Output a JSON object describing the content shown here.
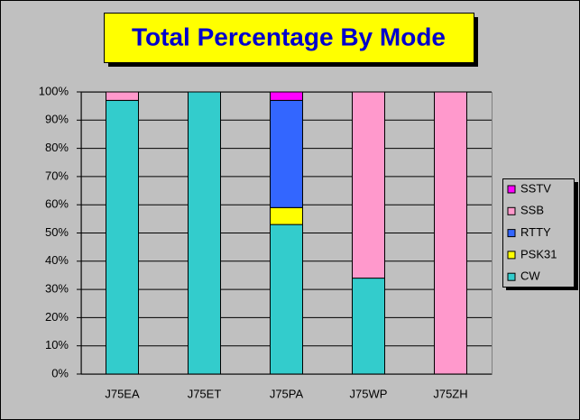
{
  "chart_data": {
    "type": "stacked_bar_percent",
    "title": "Total Percentage By Mode",
    "categories": [
      "J75EA",
      "J75ET",
      "J75PA",
      "J75WP",
      "J75ZH"
    ],
    "series": [
      {
        "name": "CW",
        "color": "#33cccc",
        "values": [
          97,
          100,
          53,
          34,
          0
        ]
      },
      {
        "name": "PSK31",
        "color": "#ffff00",
        "values": [
          0,
          0,
          6,
          0,
          0
        ]
      },
      {
        "name": "RTTY",
        "color": "#3366ff",
        "values": [
          0,
          0,
          38,
          0,
          0
        ]
      },
      {
        "name": "SSB",
        "color": "#ff99cc",
        "values": [
          3,
          0,
          0,
          66,
          100
        ]
      },
      {
        "name": "SSTV",
        "color": "#ff00ff",
        "values": [
          0,
          0,
          3,
          0,
          0
        ]
      }
    ],
    "ylim": [
      0,
      100
    ],
    "yticks": [
      {
        "value": 0,
        "label": "0%"
      },
      {
        "value": 10,
        "label": "10%"
      },
      {
        "value": 20,
        "label": "20%"
      },
      {
        "value": 30,
        "label": "30%"
      },
      {
        "value": 40,
        "label": "40%"
      },
      {
        "value": 50,
        "label": "50%"
      },
      {
        "value": 60,
        "label": "60%"
      },
      {
        "value": 70,
        "label": "70%"
      },
      {
        "value": 80,
        "label": "80%"
      },
      {
        "value": 90,
        "label": "90%"
      },
      {
        "value": 100,
        "label": "100%"
      }
    ],
    "grid": true,
    "legend": "right"
  }
}
